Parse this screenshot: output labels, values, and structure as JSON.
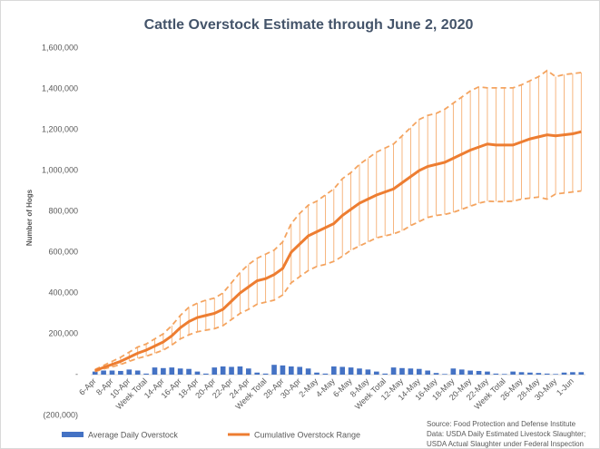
{
  "chart_data": {
    "type": "bar-line",
    "title": "Cattle Overstock Estimate through June 2, 2020",
    "y_axis_label": "Number of Hogs",
    "source": [
      "Source: Food Protection and Defense Institute",
      "Data: USDA Daily Estimated Livestock Slaughter;",
      "USDA Actual Slaughter under Federal Inspection"
    ],
    "categories": [
      "6-Apr",
      null,
      "8-Apr",
      null,
      "10-Apr",
      null,
      "Week Total",
      null,
      "14-Apr",
      null,
      "16-Apr",
      null,
      "18-Apr",
      null,
      "20-Apr",
      null,
      "22-Apr",
      null,
      "24-Apr",
      null,
      "Week Total",
      null,
      "28-Apr",
      null,
      "30-Apr",
      null,
      "2-May",
      null,
      "4-May",
      null,
      "6-May",
      null,
      "8-May",
      null,
      "Week Total",
      null,
      "12-May",
      null,
      "14-May",
      null,
      "16-May",
      null,
      "18-May",
      null,
      "20-May",
      null,
      "22-May",
      null,
      "Week Total",
      null,
      "26-May",
      null,
      "28-May",
      null,
      "30-May",
      null,
      "1-Jun",
      null
    ],
    "series": [
      {
        "name": "Average Daily Overstock",
        "kind": "bar",
        "color": "#4472c4",
        "values": [
          15000,
          20000,
          20000,
          18000,
          25000,
          20000,
          5000,
          35000,
          32000,
          35000,
          30000,
          28000,
          15000,
          5000,
          35000,
          40000,
          38000,
          40000,
          30000,
          10000,
          5000,
          48000,
          45000,
          40000,
          38000,
          30000,
          10000,
          5000,
          40000,
          38000,
          35000,
          30000,
          25000,
          15000,
          5000,
          35000,
          32000,
          30000,
          28000,
          20000,
          8000,
          3000,
          30000,
          25000,
          20000,
          18000,
          15000,
          5000,
          3000,
          15000,
          12000,
          10000,
          8000,
          5000,
          3000,
          10000,
          12000,
          12000
        ]
      },
      {
        "name": "Cumulative Overstock Range",
        "kind": "line",
        "color": "#ed7d31",
        "values": [
          20000,
          35000,
          50000,
          65000,
          85000,
          105000,
          120000,
          140000,
          160000,
          190000,
          230000,
          260000,
          280000,
          290000,
          300000,
          320000,
          360000,
          400000,
          430000,
          460000,
          470000,
          490000,
          520000,
          600000,
          640000,
          680000,
          700000,
          720000,
          740000,
          780000,
          810000,
          840000,
          860000,
          880000,
          895000,
          910000,
          940000,
          970000,
          1000000,
          1020000,
          1030000,
          1040000,
          1060000,
          1080000,
          1100000,
          1115000,
          1130000,
          1125000,
          1125000,
          1125000,
          1140000,
          1155000,
          1165000,
          1175000,
          1170000,
          1175000,
          1180000,
          1190000
        ]
      },
      {
        "kind": "dashed",
        "color": "#f4a460",
        "values": [
          25000,
          45000,
          65000,
          85000,
          110000,
          135000,
          150000,
          175000,
          200000,
          240000,
          290000,
          330000,
          350000,
          365000,
          375000,
          400000,
          450000,
          500000,
          540000,
          570000,
          590000,
          610000,
          650000,
          740000,
          790000,
          830000,
          850000,
          880000,
          910000,
          960000,
          990000,
          1030000,
          1060000,
          1090000,
          1110000,
          1130000,
          1170000,
          1210000,
          1250000,
          1270000,
          1280000,
          1300000,
          1330000,
          1360000,
          1390000,
          1410000,
          1405000,
          1405000,
          1405000,
          1405000,
          1420000,
          1440000,
          1460000,
          1490000,
          1460000,
          1470000,
          1475000,
          1480000
        ]
      },
      {
        "kind": "dashed",
        "color": "#f4a460",
        "values": [
          15000,
          28000,
          38000,
          50000,
          65000,
          80000,
          90000,
          105000,
          120000,
          145000,
          175000,
          195000,
          210000,
          218000,
          225000,
          240000,
          270000,
          300000,
          320000,
          345000,
          355000,
          365000,
          390000,
          450000,
          480000,
          510000,
          530000,
          540000,
          555000,
          580000,
          610000,
          630000,
          650000,
          670000,
          680000,
          690000,
          705000,
          730000,
          750000,
          770000,
          780000,
          785000,
          795000,
          810000,
          825000,
          840000,
          850000,
          848000,
          848000,
          850000,
          860000,
          865000,
          870000,
          860000,
          885000,
          890000,
          895000,
          900000
        ]
      }
    ],
    "ylim": [
      -200000,
      1600000
    ],
    "yticks": [
      {
        "value": -200000,
        "label": "(200,000)"
      },
      {
        "value": 0,
        "label": "-"
      },
      {
        "value": 200000,
        "label": "200,000"
      },
      {
        "value": 400000,
        "label": "400,000"
      },
      {
        "value": 600000,
        "label": "600,000"
      },
      {
        "value": 800000,
        "label": "800,000"
      },
      {
        "value": 1000000,
        "label": "1,000,000"
      },
      {
        "value": 1200000,
        "label": "1,200,000"
      },
      {
        "value": 1400000,
        "label": "1,400,000"
      },
      {
        "value": 1600000,
        "label": "1,600,000"
      }
    ],
    "grid": false,
    "legend": "bottom"
  }
}
